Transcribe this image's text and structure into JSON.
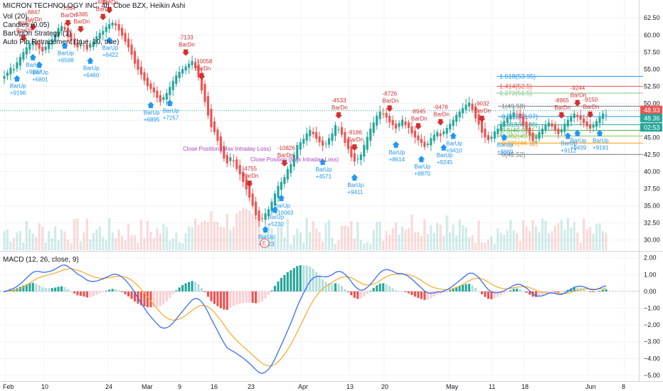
{
  "header": {
    "title": "MICRON TECHNOLOGY INC, 4h, Cboe BZX, Heikin Ashi",
    "indicators": [
      "Vol (20)",
      "Candles (0.05)",
      "BarUpDn Strategy (1)",
      "Auto Fib Retracement (true, 10, true)"
    ]
  },
  "macd_label": "MACD (12, 26, close, 9)",
  "price_axis": {
    "ticks": [
      "62.50",
      "60.00",
      "57.50",
      "55.00",
      "52.50",
      "50.00",
      "47.50",
      "45.00",
      "42.50",
      "40.00",
      "37.50",
      "35.00",
      "32.50",
      "30.00"
    ],
    "values": [
      62.5,
      60,
      57.5,
      55,
      52.5,
      50,
      47.5,
      45,
      42.5,
      40,
      37.5,
      35,
      32.5,
      30
    ]
  },
  "macd_axis": {
    "ticks": [
      "2.00",
      "1.00",
      "0.00",
      "−1.00",
      "−2.00",
      "−3.00",
      "−4.00",
      "−5.00"
    ],
    "values": [
      2,
      1,
      0,
      -1,
      -2,
      -3,
      -4,
      -5
    ]
  },
  "time_axis": [
    "Feb",
    "10",
    "24",
    "Mar",
    "9",
    "16",
    "23",
    "Apr",
    "13",
    "20",
    "May",
    "11",
    "18",
    "Jun",
    "8"
  ],
  "price_labels": [
    {
      "text": "48.93",
      "value": 48.93,
      "color": "#ef5350"
    },
    {
      "text": "48.36",
      "value": 48.36,
      "color": "#26a69a"
    },
    {
      "text": "02:53",
      "value": 46.9,
      "color": "#26a69a"
    }
  ],
  "fib_levels": [
    {
      "text": "1.618(53.95)",
      "value": 53.95,
      "color": "#2196f3"
    },
    {
      "text": "1.414(52.5)",
      "value": 52.5,
      "color": "#ef5350"
    },
    {
      "text": "1.272(51.5)",
      "value": 51.5,
      "color": "#81c784"
    },
    {
      "text": "1(49.58)",
      "value": 49.58,
      "color": "#787b86"
    },
    {
      "text": "0.786(48.07)",
      "value": 48.07,
      "color": "#2196f3"
    },
    {
      "text": "0.618(46.88)",
      "value": 46.88,
      "color": "#26a69a"
    },
    {
      "text": "0.5(46.05)",
      "value": 46.05,
      "color": "#4caf50"
    },
    {
      "text": "0.382(45.22)",
      "value": 45.22,
      "color": "#8bc34a"
    },
    {
      "text": "0.236(44.18)",
      "value": 44.18,
      "color": "#ff9800"
    },
    {
      "text": "0(42.52)",
      "value": 42.52,
      "color": "#787b86"
    }
  ],
  "signals": {
    "down": [
      "-6385",
      "-6097",
      "-5765",
      "-7364",
      "-7133",
      "-10058",
      "-4533",
      "-9186",
      "-8726",
      "-8945",
      "-9478",
      "-9032",
      "-8965",
      "-9244",
      "-9150",
      "-9087",
      "-8847",
      "-10826",
      "-4755"
    ],
    "down_label": "BarDn",
    "up": [
      "+6460",
      "+6422",
      "+6598",
      "+6801",
      "+7257",
      "+6895",
      "+8323",
      "+5230",
      "+10063",
      "+4571",
      "+9411",
      "+8614",
      "+8870",
      "+9245",
      "+9410",
      "+8869",
      "+9112",
      "+9181",
      "+9196",
      "+9187",
      "+9439"
    ],
    "up_label": "BarUp",
    "close_labels": [
      "Close Position (Max Intraday Loss)",
      "Close Position (Max Intraday Loss)"
    ]
  },
  "earnings_marker": "E",
  "chart_data": [
    {
      "type": "candlestick",
      "title": "MICRON TECHNOLOGY INC, 4h, Cboe BZX, Heikin Ashi",
      "x_ticks": [
        "Feb",
        "10",
        "24",
        "Mar",
        "9",
        "16",
        "23",
        "Apr",
        "13",
        "20",
        "May",
        "11",
        "18",
        "Jun",
        "8"
      ],
      "ylim": [
        28.5,
        64.5
      ],
      "closes": [
        54.0,
        54.5,
        55.2,
        55.0,
        56.0,
        56.8,
        57.5,
        58.2,
        58.8,
        59.1,
        58.5,
        58.0,
        57.6,
        58.3,
        58.9,
        59.4,
        60.1,
        61.0,
        61.3,
        60.8,
        59.7,
        59.2,
        58.6,
        58.2,
        58.8,
        58.4,
        57.9,
        58.6,
        59.1,
        59.8,
        60.3,
        60.6,
        61.2,
        61.6,
        61.8,
        61.4,
        60.7,
        59.9,
        59.0,
        58.2,
        57.1,
        55.8,
        54.9,
        54.2,
        53.3,
        52.5,
        52.1,
        51.6,
        50.8,
        50.2,
        50.9,
        51.5,
        52.4,
        53.3,
        54.1,
        54.6,
        55.0,
        55.4,
        55.8,
        56.2,
        55.2,
        53.8,
        51.9,
        50.2,
        48.2,
        46.5,
        45.8,
        44.5,
        43.0,
        41.9,
        41.2,
        42.1,
        41.5,
        40.4,
        39.6,
        38.5,
        37.4,
        36.2,
        35.0,
        33.6,
        32.8,
        33.1,
        33.9,
        34.5,
        35.6,
        36.8,
        37.9,
        38.5,
        39.2,
        40.4,
        41.1,
        42.5,
        43.9,
        44.3,
        44.8,
        45.6,
        46.1,
        45.5,
        44.8,
        44.3,
        43.8,
        44.1,
        44.9,
        45.6,
        46.8,
        46.2,
        45.4,
        44.2,
        43.3,
        42.1,
        41.5,
        41.9,
        42.5,
        43.9,
        45.1,
        46.3,
        47.2,
        48.2,
        48.8,
        48.4,
        47.9,
        47.2,
        46.8,
        46.3,
        47.1,
        47.6,
        46.8,
        46.4,
        45.6,
        45.0,
        44.6,
        44.2,
        43.6,
        44.1,
        44.9,
        45.4,
        45.8,
        45.2,
        45.9,
        46.4,
        47.0,
        47.6,
        48.3,
        48.8,
        49.3,
        49.8,
        50.1,
        49.0,
        47.8,
        46.9,
        45.7,
        45.0,
        44.6,
        45.1,
        45.9,
        46.3,
        46.9,
        47.4,
        47.9,
        48.2,
        48.7,
        48.4,
        47.8,
        46.8,
        46.1,
        45.3,
        44.5,
        45.1,
        45.8,
        46.3,
        46.9,
        47.2,
        46.6,
        46.0,
        45.5,
        46.2,
        47.0,
        47.6,
        48.1,
        48.5,
        48.0,
        47.6,
        47.1,
        46.6,
        46.3,
        46.8,
        47.4,
        48.0,
        48.5,
        48.36
      ],
      "volume_scale": "relative",
      "macd": {
        "title": "MACD (12, 26, close, 9)",
        "ylim": [
          -5.3,
          2.2
        ],
        "series": [
          {
            "name": "MACD",
            "color": "#2962ff"
          },
          {
            "name": "Signal",
            "color": "#f9a825"
          },
          {
            "name": "Histogram",
            "color": "#26a69a"
          }
        ]
      }
    }
  ]
}
